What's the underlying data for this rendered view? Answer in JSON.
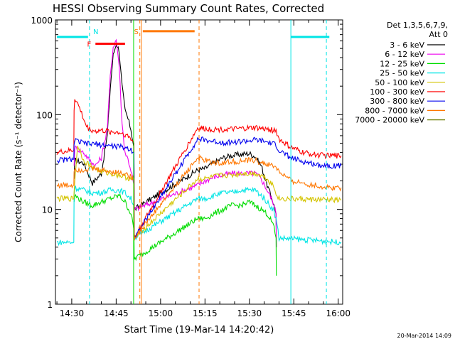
{
  "chart_data": {
    "type": "line",
    "title": "HESSI Observing Summary Count Rates, Corrected",
    "xlabel": "Start Time (19-Mar-14 14:20:42)",
    "ylabel": "Corrected Count Rate (s⁻¹ detector⁻¹)",
    "y_scale": "log",
    "ylim": [
      1,
      1000
    ],
    "xlim_minutes_after_1420": [
      4.5,
      101.5
    ],
    "x_ticks": [
      {
        "t": 10,
        "label": "14:30"
      },
      {
        "t": 25,
        "label": "14:45"
      },
      {
        "t": 40,
        "label": "15:00"
      },
      {
        "t": 55,
        "label": "15:15"
      },
      {
        "t": 70,
        "label": "15:30"
      },
      {
        "t": 85,
        "label": "15:45"
      },
      {
        "t": 100,
        "label": "16:00"
      }
    ],
    "y_ticks": [
      {
        "v": 1,
        "label": "1"
      },
      {
        "v": 10,
        "label": "10"
      },
      {
        "v": 100,
        "label": "100"
      },
      {
        "v": 1000,
        "label": "1000"
      }
    ],
    "legend": {
      "placement": "right",
      "header_line1": "Det 1,3,5,6,7,9,",
      "header_line2": "Att 0"
    },
    "series": [
      {
        "name": "3 - 6 keV",
        "color": "#000000",
        "x": [
          10.8,
          11,
          14,
          17,
          20,
          22,
          23,
          24,
          25,
          26,
          27,
          28,
          29,
          30,
          31,
          31.1,
          52.5,
          55,
          58,
          61,
          64,
          67,
          70,
          72,
          74,
          76,
          78,
          79,
          79.1
        ],
        "y": [
          21,
          33,
          31,
          19,
          24,
          60,
          190,
          420,
          560,
          480,
          200,
          110,
          90,
          70,
          45,
          10,
          26,
          27,
          31,
          35,
          37,
          38,
          39,
          36,
          29,
          18,
          12,
          9,
          4
        ]
      },
      {
        "name": "6 - 12 keV",
        "color": "#ee00ee",
        "x": [
          10.8,
          11,
          14,
          16,
          18,
          20,
          22,
          23,
          24,
          25,
          26,
          27,
          28,
          29,
          30,
          31,
          31.1,
          52.5,
          55,
          58,
          61,
          64,
          67,
          70,
          72,
          74,
          76,
          78,
          79,
          79.1
        ],
        "y": [
          29,
          45,
          40,
          33,
          29,
          35,
          70,
          250,
          520,
          620,
          340,
          80,
          40,
          34,
          26,
          18,
          10,
          18,
          20,
          22,
          23,
          24,
          24,
          24,
          24,
          21,
          16,
          12,
          9,
          4
        ]
      },
      {
        "name": "12 - 25 keV",
        "color": "#00dd00",
        "x": [
          10.8,
          11,
          14,
          17,
          20,
          23,
          26,
          28,
          30,
          31,
          31.1,
          52.5,
          55,
          58,
          61,
          64,
          67,
          70,
          72,
          74,
          76,
          78,
          79,
          79.1
        ],
        "y": [
          12,
          14,
          12,
          11,
          12,
          13,
          14,
          12,
          9,
          6,
          3,
          8,
          8,
          9,
          10,
          11,
          11,
          12,
          11,
          10,
          9,
          7,
          5,
          2
        ]
      },
      {
        "name": "25 - 50 keV",
        "color": "#00e5e5",
        "x": [
          5,
          10.7,
          10.8,
          11,
          14,
          17,
          20,
          23,
          26,
          28,
          30,
          31,
          31.1,
          52.5,
          55,
          58,
          61,
          64,
          67,
          70,
          72,
          74,
          76,
          78,
          79,
          80,
          101
        ],
        "y": [
          4.5,
          4.5,
          14,
          17,
          16,
          15,
          15,
          16,
          16,
          15,
          13,
          11,
          5,
          13,
          13,
          14,
          15,
          15,
          16,
          16,
          16,
          14,
          12,
          10,
          8,
          5,
          4.5
        ]
      },
      {
        "name": "50 - 100 keV",
        "color": "#d4c400",
        "x": [
          5,
          10.7,
          10.8,
          12,
          14,
          17,
          20,
          23,
          26,
          28,
          30,
          31,
          31.1,
          52.5,
          55,
          58,
          61,
          64,
          67,
          70,
          72,
          74,
          76,
          78,
          79,
          80,
          101
        ],
        "y": [
          13,
          13,
          16,
          48,
          33,
          28,
          25,
          24,
          23,
          22,
          21,
          20,
          5,
          21,
          21,
          22,
          23,
          23,
          24,
          24,
          24,
          23,
          21,
          18,
          15,
          13,
          12.5
        ]
      },
      {
        "name": "100 - 300 keV",
        "color": "#ff0000",
        "x": [
          5,
          10.7,
          10.8,
          11,
          12,
          13,
          14,
          15,
          16,
          18,
          20,
          23,
          26,
          28,
          30,
          31,
          31.1,
          52.5,
          55,
          58,
          61,
          64,
          67,
          70,
          72,
          74,
          76,
          79,
          80,
          84,
          88,
          92,
          96,
          101
        ],
        "y": [
          40,
          42,
          110,
          150,
          130,
          110,
          90,
          75,
          70,
          67,
          68,
          66,
          65,
          62,
          56,
          50,
          5,
          72,
          71,
          70,
          70,
          70,
          71,
          72,
          73,
          71,
          70,
          68,
          55,
          45,
          40,
          38,
          37,
          37
        ]
      },
      {
        "name": "300 - 800 keV",
        "color": "#0000ee",
        "x": [
          5,
          10.7,
          10.8,
          11,
          12,
          14,
          16,
          18,
          20,
          23,
          26,
          28,
          30,
          31,
          31.1,
          52.5,
          55,
          58,
          61,
          64,
          67,
          70,
          72,
          74,
          76,
          79,
          80,
          84,
          88,
          92,
          96,
          101
        ],
        "y": [
          33,
          34,
          48,
          54,
          52,
          50,
          49,
          49,
          48,
          47,
          46,
          45,
          43,
          40,
          5,
          55,
          54,
          52,
          51,
          51,
          52,
          53,
          54,
          53,
          51,
          48,
          42,
          35,
          32,
          30,
          29,
          29
        ]
      },
      {
        "name": "800 - 7000 keV",
        "color": "#ff7700",
        "x": [
          5,
          10.7,
          10.8,
          11,
          13,
          16,
          20,
          24,
          28,
          31,
          31.1,
          52.5,
          55,
          58,
          61,
          64,
          67,
          70,
          72,
          74,
          76,
          79,
          80,
          84,
          88,
          92,
          96,
          101
        ],
        "y": [
          18,
          18,
          25,
          27,
          26,
          27,
          26,
          25,
          24,
          21,
          5,
          35,
          33,
          31,
          31,
          32,
          32,
          33,
          33,
          31,
          30,
          28,
          25,
          20,
          19,
          18,
          17,
          17
        ]
      },
      {
        "name": "7000 - 20000 keV",
        "color": "#6b7b00",
        "x": [],
        "y": []
      }
    ],
    "state_bars": [
      {
        "label": "F",
        "color": "#ff0000",
        "start": 18,
        "end": 28,
        "y": 560
      },
      {
        "label": "S",
        "color": "#ff7700",
        "start": 34,
        "end": 51.5,
        "y": 760
      },
      {
        "label": "",
        "color": "#00e5e5",
        "start": 5,
        "end": 15.5,
        "y": 660
      },
      {
        "label": "",
        "color": "#00e5e5",
        "start": 84,
        "end": 97,
        "y": 660
      }
    ],
    "n_label": {
      "text": "N",
      "color": "#00e5e5",
      "t": 16.5,
      "v": 660
    },
    "vertical_lines": [
      {
        "t": 16,
        "color": "#00e5e5",
        "dashed": true
      },
      {
        "t": 96,
        "color": "#00e5e5",
        "dashed": true
      },
      {
        "t": 33,
        "color": "#ff7700",
        "dashed": true
      },
      {
        "t": 53,
        "color": "#ff7700",
        "dashed": true
      },
      {
        "t": 84,
        "color": "#00e5e5",
        "dashed": false
      },
      {
        "t": 33.5,
        "color": "#ff7700",
        "dashed": false
      },
      {
        "t": 30.9,
        "color": "#00dd00",
        "dashed": false
      }
    ],
    "datestamp": "20-Mar-2014 14:09",
    "colors": {
      "axis": "#000000",
      "background": "#ffffff"
    }
  }
}
